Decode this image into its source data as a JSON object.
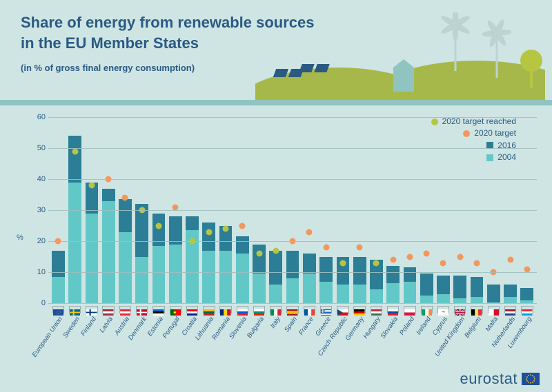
{
  "colors": {
    "page_bg": "#cfe5e4",
    "divider": "#8fc4c0",
    "title": "#2a5a82",
    "text": "#2a5a82",
    "axis": "#2a5a82",
    "bar_2016": "#2b7e95",
    "bar_2004": "#62c8c7",
    "target": "#f2975d",
    "target_reached": "#b6c643",
    "grid": "#9fbfbf",
    "hill": "#a7b84b",
    "turbine": "#bcd3d1",
    "footer_text": "#2a5a82",
    "eu_blue": "#1d4f9c",
    "eu_gold": "#f8cf3e"
  },
  "title_line1": "Share of energy from renewable sources",
  "title_line2": "in the EU Member States",
  "subtitle": "(in % of gross final energy consumption)",
  "ylabel": "%",
  "ylim_max": 60,
  "ytick_step": 10,
  "legend": {
    "target_reached": "2020 target reached",
    "target": "2020 target",
    "y2016": "2016",
    "y2004": "2004"
  },
  "footer": "eurostat",
  "countries": [
    {
      "name": "European Union",
      "v2004": 8.5,
      "v2016": 17,
      "target": 20,
      "reached": false,
      "flag": "eu"
    },
    {
      "name": "Sweden",
      "v2004": 39,
      "v2016": 54,
      "target": 49,
      "reached": true,
      "flag": "se"
    },
    {
      "name": "Finland",
      "v2004": 29,
      "v2016": 39,
      "target": 38,
      "reached": true,
      "flag": "fi"
    },
    {
      "name": "Latvia",
      "v2004": 33,
      "v2016": 37,
      "target": 40,
      "reached": false,
      "flag": "lv"
    },
    {
      "name": "Austria",
      "v2004": 23,
      "v2016": 33.5,
      "target": 34,
      "reached": false,
      "flag": "at"
    },
    {
      "name": "Denmark",
      "v2004": 15,
      "v2016": 32,
      "target": 30,
      "reached": true,
      "flag": "dk"
    },
    {
      "name": "Estonia",
      "v2004": 18.5,
      "v2016": 29,
      "target": 25,
      "reached": true,
      "flag": "ee"
    },
    {
      "name": "Portugal",
      "v2004": 19,
      "v2016": 28,
      "target": 31,
      "reached": false,
      "flag": "pt"
    },
    {
      "name": "Croatia",
      "v2004": 23.5,
      "v2016": 28,
      "target": 20,
      "reached": true,
      "flag": "hr"
    },
    {
      "name": "Lithuania",
      "v2004": 17,
      "v2016": 26,
      "target": 23,
      "reached": true,
      "flag": "lt"
    },
    {
      "name": "Romania",
      "v2004": 17,
      "v2016": 25,
      "target": 24,
      "reached": true,
      "flag": "ro"
    },
    {
      "name": "Slovenia",
      "v2004": 16,
      "v2016": 21.5,
      "target": 25,
      "reached": false,
      "flag": "si"
    },
    {
      "name": "Bulgaria",
      "v2004": 9.5,
      "v2016": 19,
      "target": 16,
      "reached": true,
      "flag": "bg"
    },
    {
      "name": "Italy",
      "v2004": 6,
      "v2016": 17,
      "target": 17,
      "reached": true,
      "flag": "it"
    },
    {
      "name": "Spain",
      "v2004": 8,
      "v2016": 17,
      "target": 20,
      "reached": false,
      "flag": "es"
    },
    {
      "name": "France",
      "v2004": 9.5,
      "v2016": 16,
      "target": 23,
      "reached": false,
      "flag": "fr"
    },
    {
      "name": "Greece",
      "v2004": 7,
      "v2016": 15,
      "target": 18,
      "reached": false,
      "flag": "gr"
    },
    {
      "name": "Czech Republic",
      "v2004": 6,
      "v2016": 15,
      "target": 13,
      "reached": true,
      "flag": "cz"
    },
    {
      "name": "Germany",
      "v2004": 6,
      "v2016": 15,
      "target": 18,
      "reached": false,
      "flag": "de"
    },
    {
      "name": "Hungary",
      "v2004": 4.5,
      "v2016": 14,
      "target": 13,
      "reached": true,
      "flag": "hu"
    },
    {
      "name": "Slovakia",
      "v2004": 6.5,
      "v2016": 12,
      "target": 14,
      "reached": false,
      "flag": "sk"
    },
    {
      "name": "Poland",
      "v2004": 7,
      "v2016": 11.5,
      "target": 15,
      "reached": false,
      "flag": "pl"
    },
    {
      "name": "Ireland",
      "v2004": 2.5,
      "v2016": 9.5,
      "target": 16,
      "reached": false,
      "flag": "ie"
    },
    {
      "name": "Cyprus",
      "v2004": 3,
      "v2016": 9,
      "target": 13,
      "reached": false,
      "flag": "cy"
    },
    {
      "name": "United Kingdom",
      "v2004": 1.5,
      "v2016": 9,
      "target": 15,
      "reached": false,
      "flag": "gb"
    },
    {
      "name": "Belgium",
      "v2004": 2,
      "v2016": 8.5,
      "target": 13,
      "reached": false,
      "flag": "be"
    },
    {
      "name": "Malta",
      "v2004": 0.2,
      "v2016": 6,
      "target": 10,
      "reached": false,
      "flag": "mt"
    },
    {
      "name": "Netherlands",
      "v2004": 2,
      "v2016": 6,
      "target": 14,
      "reached": false,
      "flag": "nl"
    },
    {
      "name": "Luxembourg",
      "v2004": 1,
      "v2016": 5,
      "target": 11,
      "reached": false,
      "flag": "lu"
    }
  ]
}
